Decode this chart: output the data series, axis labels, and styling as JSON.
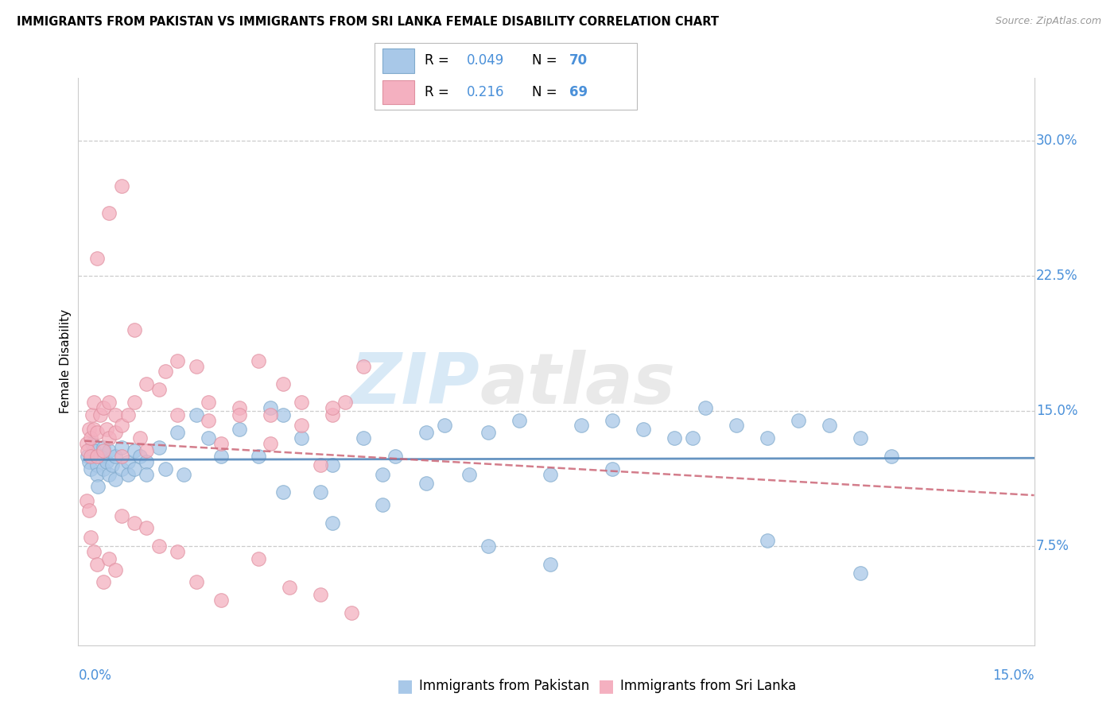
{
  "title": "IMMIGRANTS FROM PAKISTAN VS IMMIGRANTS FROM SRI LANKA FEMALE DISABILITY CORRELATION CHART",
  "source": "Source: ZipAtlas.com",
  "ylabel": "Female Disability",
  "ytick_labels": [
    "7.5%",
    "15.0%",
    "22.5%",
    "30.0%"
  ],
  "ytick_values": [
    0.075,
    0.15,
    0.225,
    0.3
  ],
  "xlim": [
    -0.001,
    0.153
  ],
  "ylim": [
    0.02,
    0.335
  ],
  "watermark_zip": "ZIP",
  "watermark_atlas": "atlas",
  "color_pakistan": "#a8c8e8",
  "color_srilanka": "#f4b0c0",
  "color_pk_edge": "#80aacc",
  "color_sl_edge": "#e090a0",
  "color_pk_line": "#5588bb",
  "color_sl_line": "#cc6677",
  "color_axis_blue": "#4a90d9",
  "legend_r1": "0.049",
  "legend_n1": "70",
  "legend_r2": "0.216",
  "legend_n2": "69",
  "pk_x": [
    0.0005,
    0.0008,
    0.001,
    0.0012,
    0.0015,
    0.002,
    0.002,
    0.0022,
    0.0025,
    0.003,
    0.003,
    0.0035,
    0.004,
    0.004,
    0.0045,
    0.005,
    0.005,
    0.006,
    0.006,
    0.007,
    0.007,
    0.008,
    0.008,
    0.009,
    0.01,
    0.01,
    0.012,
    0.013,
    0.015,
    0.016,
    0.018,
    0.02,
    0.022,
    0.025,
    0.028,
    0.03,
    0.032,
    0.035,
    0.038,
    0.04,
    0.045,
    0.048,
    0.05,
    0.055,
    0.058,
    0.062,
    0.065,
    0.07,
    0.075,
    0.08,
    0.085,
    0.09,
    0.095,
    0.1,
    0.105,
    0.11,
    0.115,
    0.12,
    0.125,
    0.13,
    0.032,
    0.04,
    0.048,
    0.055,
    0.065,
    0.075,
    0.085,
    0.098,
    0.11,
    0.125
  ],
  "pk_y": [
    0.125,
    0.122,
    0.118,
    0.132,
    0.128,
    0.12,
    0.115,
    0.108,
    0.125,
    0.13,
    0.118,
    0.122,
    0.115,
    0.128,
    0.12,
    0.112,
    0.125,
    0.118,
    0.13,
    0.122,
    0.115,
    0.128,
    0.118,
    0.125,
    0.122,
    0.115,
    0.13,
    0.118,
    0.138,
    0.115,
    0.148,
    0.135,
    0.125,
    0.14,
    0.125,
    0.152,
    0.148,
    0.135,
    0.105,
    0.12,
    0.135,
    0.115,
    0.125,
    0.138,
    0.142,
    0.115,
    0.138,
    0.145,
    0.115,
    0.142,
    0.118,
    0.14,
    0.135,
    0.152,
    0.142,
    0.135,
    0.145,
    0.142,
    0.135,
    0.125,
    0.105,
    0.088,
    0.098,
    0.11,
    0.075,
    0.065,
    0.145,
    0.135,
    0.078,
    0.06
  ],
  "sl_x": [
    0.0003,
    0.0005,
    0.0007,
    0.001,
    0.001,
    0.0012,
    0.0015,
    0.0015,
    0.002,
    0.002,
    0.0025,
    0.003,
    0.003,
    0.0035,
    0.004,
    0.004,
    0.005,
    0.005,
    0.006,
    0.006,
    0.007,
    0.008,
    0.009,
    0.01,
    0.012,
    0.013,
    0.015,
    0.018,
    0.02,
    0.022,
    0.025,
    0.028,
    0.03,
    0.032,
    0.035,
    0.038,
    0.04,
    0.042,
    0.045,
    0.0003,
    0.0008,
    0.001,
    0.0015,
    0.002,
    0.003,
    0.004,
    0.005,
    0.006,
    0.008,
    0.01,
    0.012,
    0.015,
    0.018,
    0.022,
    0.028,
    0.033,
    0.038,
    0.043,
    0.002,
    0.004,
    0.006,
    0.008,
    0.01,
    0.015,
    0.02,
    0.025,
    0.03,
    0.035,
    0.04
  ],
  "sl_y": [
    0.132,
    0.128,
    0.14,
    0.135,
    0.125,
    0.148,
    0.155,
    0.14,
    0.138,
    0.125,
    0.148,
    0.152,
    0.128,
    0.14,
    0.135,
    0.155,
    0.148,
    0.138,
    0.142,
    0.125,
    0.148,
    0.155,
    0.135,
    0.128,
    0.162,
    0.172,
    0.148,
    0.175,
    0.145,
    0.132,
    0.152,
    0.178,
    0.148,
    0.165,
    0.155,
    0.12,
    0.148,
    0.155,
    0.175,
    0.1,
    0.095,
    0.08,
    0.072,
    0.065,
    0.055,
    0.068,
    0.062,
    0.092,
    0.088,
    0.085,
    0.075,
    0.072,
    0.055,
    0.045,
    0.068,
    0.052,
    0.048,
    0.038,
    0.235,
    0.26,
    0.275,
    0.195,
    0.165,
    0.178,
    0.155,
    0.148,
    0.132,
    0.142,
    0.152
  ]
}
